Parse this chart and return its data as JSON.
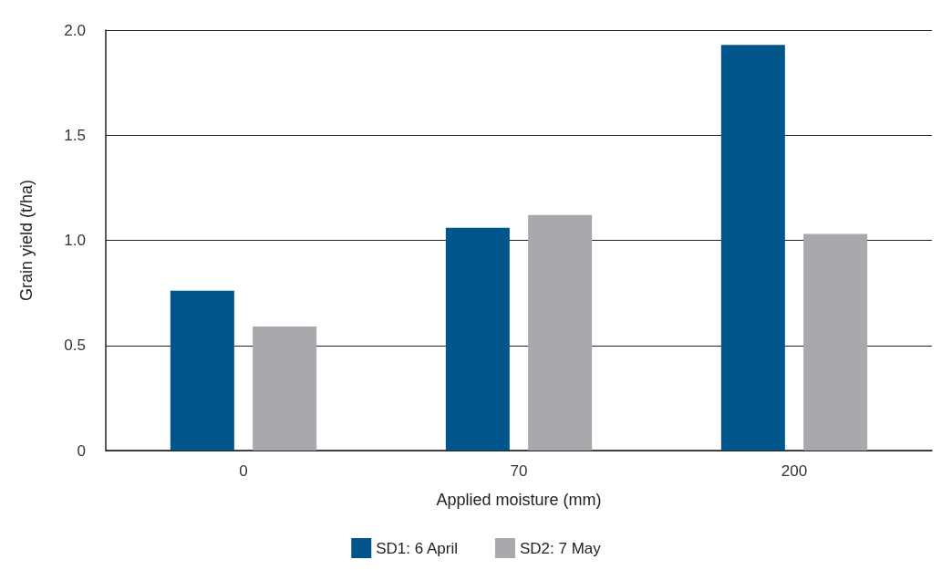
{
  "chart_data": {
    "type": "bar",
    "xlabel": "Applied moisture (mm)",
    "ylabel": "Grain yield (t/ha)",
    "categories": [
      "0",
      "70",
      "200"
    ],
    "series": [
      {
        "name": "SD1: 6 April",
        "color": "#00558a",
        "values": [
          0.76,
          1.06,
          1.93
        ]
      },
      {
        "name": "SD2: 7 May",
        "color": "#a7a9ac",
        "values": [
          0.59,
          1.12,
          1.03
        ]
      }
    ],
    "ylim": [
      0,
      2
    ],
    "yticks": [
      0,
      {
        "value": 0.5,
        "label": "0.5"
      },
      {
        "value": 1,
        "label": "1.0"
      },
      {
        "value": 1.5,
        "label": "1.5"
      },
      {
        "value": 2,
        "label": "2.0"
      }
    ],
    "grid": "y",
    "legend": "bottom"
  }
}
